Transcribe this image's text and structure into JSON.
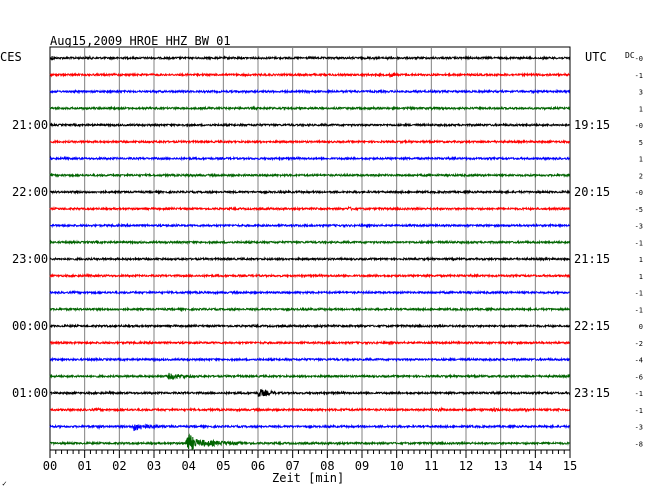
{
  "chart_data": {
    "type": "line",
    "title": "Aug15,2009   HROE HHZ BW 01",
    "left_axis_label": "CES",
    "right_axis_label": "UTC",
    "dc_label": "DC",
    "xlabel": "Zeit [min]",
    "xlim": [
      0,
      15
    ],
    "x_ticks": [
      "00",
      "01",
      "02",
      "03",
      "04",
      "05",
      "06",
      "07",
      "08",
      "09",
      "10",
      "11",
      "12",
      "13",
      "14",
      "15"
    ],
    "left_time_labels": [
      {
        "row": 4,
        "text": "21:00"
      },
      {
        "row": 8,
        "text": "22:00"
      },
      {
        "row": 12,
        "text": "23:00"
      },
      {
        "row": 16,
        "text": "00:00"
      },
      {
        "row": 20,
        "text": "01:00"
      }
    ],
    "right_time_labels": [
      {
        "row": 4,
        "text": "19:15"
      },
      {
        "row": 8,
        "text": "20:15"
      },
      {
        "row": 12,
        "text": "21:15"
      },
      {
        "row": 16,
        "text": "22:15"
      },
      {
        "row": 20,
        "text": "23:15"
      }
    ],
    "colors": {
      "black": "#000000",
      "red": "#ff0000",
      "blue": "#0000ff",
      "green": "#006400",
      "grid": "#808080"
    },
    "traces": [
      {
        "color": "black",
        "dc": "-0",
        "events": [
          {
            "t": 0.05,
            "amp": 3.5,
            "dur": 0.15
          },
          {
            "t": 1.1,
            "amp": 2.2,
            "dur": 0.3
          },
          {
            "t": 9.3,
            "amp": 2.0,
            "dur": 0.4
          },
          {
            "t": 9.7,
            "amp": 2.0,
            "dur": 0.3
          }
        ]
      },
      {
        "color": "red",
        "dc": "-1",
        "events": [
          {
            "t": 9.8,
            "amp": 3.0,
            "dur": 0.5
          },
          {
            "t": 3.0,
            "amp": 1.2,
            "dur": 0.3
          }
        ]
      },
      {
        "color": "blue",
        "dc": "3",
        "events": [
          {
            "t": 2.0,
            "amp": 1.2,
            "dur": 0.4
          }
        ]
      },
      {
        "color": "green",
        "dc": "1",
        "events": [
          {
            "t": 9.2,
            "amp": 1.5,
            "dur": 1.2
          }
        ]
      },
      {
        "color": "black",
        "dc": "-0",
        "events": [
          {
            "t": 3.8,
            "amp": 1.4,
            "dur": 0.3
          }
        ]
      },
      {
        "color": "red",
        "dc": "5",
        "events": [
          {
            "t": 3.3,
            "amp": 1.4,
            "dur": 0.3
          }
        ]
      },
      {
        "color": "blue",
        "dc": "1",
        "events": [
          {
            "t": 10.6,
            "amp": 1.2,
            "dur": 0.5
          }
        ]
      },
      {
        "color": "green",
        "dc": "2",
        "events": [
          {
            "t": 3.9,
            "amp": 1.6,
            "dur": 1.5
          },
          {
            "t": 5.6,
            "amp": 1.1,
            "dur": 0.4
          }
        ]
      },
      {
        "color": "black",
        "dc": "-0",
        "events": [
          {
            "t": 1.2,
            "amp": 1.0,
            "dur": 0.3
          }
        ]
      },
      {
        "color": "red",
        "dc": "-5",
        "events": [
          {
            "t": 8.6,
            "amp": 2.0,
            "dur": 0.8
          }
        ]
      },
      {
        "color": "blue",
        "dc": "-3",
        "events": [
          {
            "t": 9.5,
            "amp": 1.1,
            "dur": 0.6
          }
        ]
      },
      {
        "color": "green",
        "dc": "-1",
        "events": []
      },
      {
        "color": "black",
        "dc": "1",
        "events": [
          {
            "t": 4.2,
            "amp": 1.0,
            "dur": 0.3
          }
        ]
      },
      {
        "color": "red",
        "dc": "1",
        "events": [
          {
            "t": 0.2,
            "amp": 1.2,
            "dur": 0.2
          }
        ]
      },
      {
        "color": "blue",
        "dc": "-1",
        "events": []
      },
      {
        "color": "green",
        "dc": "-1",
        "events": [
          {
            "t": 3.8,
            "amp": 1.1,
            "dur": 0.4
          }
        ]
      },
      {
        "color": "black",
        "dc": "0",
        "events": [
          {
            "t": 8.0,
            "amp": 2.5,
            "dur": 0.1
          }
        ]
      },
      {
        "color": "red",
        "dc": "-2",
        "events": [
          {
            "t": 9.9,
            "amp": 1.0,
            "dur": 0.3
          }
        ]
      },
      {
        "color": "blue",
        "dc": "-4",
        "events": []
      },
      {
        "color": "green",
        "dc": "-6",
        "events": [
          {
            "t": 3.4,
            "amp": 3.5,
            "dur": 1.4
          },
          {
            "t": 5.4,
            "amp": 1.2,
            "dur": 0.4
          }
        ]
      },
      {
        "color": "black",
        "dc": "-1",
        "events": [
          {
            "t": 6.0,
            "amp": 4.5,
            "dur": 1.0
          },
          {
            "t": 2.5,
            "amp": 1.3,
            "dur": 0.3
          },
          {
            "t": 5.3,
            "amp": 1.5,
            "dur": 0.3
          }
        ]
      },
      {
        "color": "red",
        "dc": "-1",
        "events": [
          {
            "t": 1.4,
            "amp": 1.5,
            "dur": 0.3
          },
          {
            "t": 7.0,
            "amp": 1.5,
            "dur": 0.3
          },
          {
            "t": 8.4,
            "amp": 2.2,
            "dur": 0.5
          },
          {
            "t": 11.2,
            "amp": 2.2,
            "dur": 0.5
          },
          {
            "t": 12.4,
            "amp": 2.5,
            "dur": 0.3
          },
          {
            "t": 12.8,
            "amp": 3.0,
            "dur": 0.3
          },
          {
            "t": 13.7,
            "amp": 2.0,
            "dur": 0.3
          },
          {
            "t": 14.6,
            "amp": 2.5,
            "dur": 0.3
          }
        ]
      },
      {
        "color": "blue",
        "dc": "-3",
        "events": [
          {
            "t": 1.4,
            "amp": 2.5,
            "dur": 0.4
          },
          {
            "t": 2.4,
            "amp": 4.5,
            "dur": 1.3
          },
          {
            "t": 3.5,
            "amp": 1.5,
            "dur": 0.3
          }
        ]
      },
      {
        "color": "green",
        "dc": "-8",
        "events": [
          {
            "t": 3.95,
            "amp": 12.0,
            "dur": 0.6
          },
          {
            "t": 4.4,
            "amp": 3.5,
            "dur": 2.6
          }
        ]
      }
    ],
    "footer_mark": "✓"
  }
}
